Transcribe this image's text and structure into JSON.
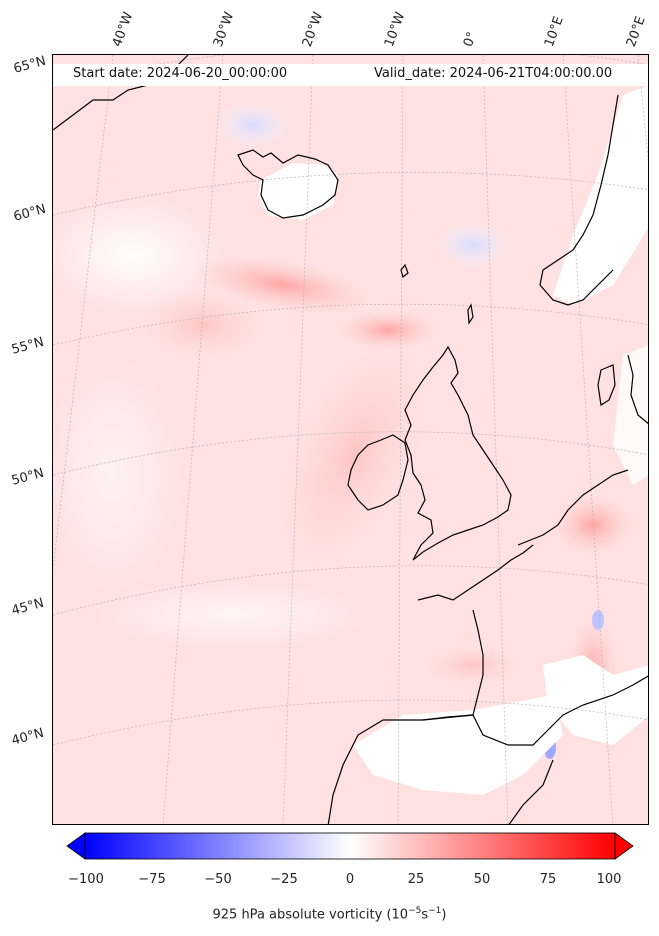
{
  "header": {
    "start_date": "Start date: 2024-06-20_00:00:00",
    "valid_date": "Valid_date: 2024-06-21T04:00:00.00"
  },
  "lon_labels": [
    "40°W",
    "30°W",
    "20°W",
    "10°W",
    "0°",
    "10°E",
    "20°E"
  ],
  "lat_labels": [
    "65°N",
    "60°N",
    "55°N",
    "50°N",
    "45°N",
    "40°N"
  ],
  "colorbar": {
    "label": "925 hPa absolute vorticity (10",
    "label_exp1": "−5",
    "label_mid": "s",
    "label_exp2": "−1",
    "label_end": ")",
    "ticks": [
      "−100",
      "−75",
      "−50",
      "−25",
      "0",
      "25",
      "50",
      "75",
      "100"
    ],
    "min": -100,
    "max": 100,
    "neg_color": "#0000ff",
    "zero_color": "#ffffff",
    "pos_color": "#ff0000"
  },
  "map": {
    "background_color": "#ffe4e4",
    "coast_color": "#000000",
    "grid_color": "#bbbbbb"
  }
}
